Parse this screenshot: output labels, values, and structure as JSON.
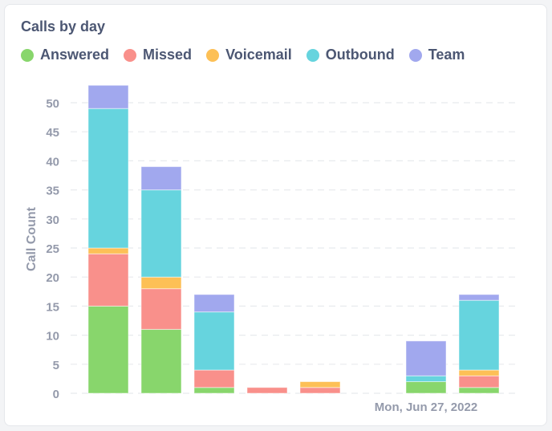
{
  "chart_data": {
    "type": "bar",
    "stacked": true,
    "title": "Calls by day",
    "ylabel": "Call Count",
    "xlabel": "",
    "ylim": [
      0,
      53
    ],
    "yticks": [
      0,
      5,
      10,
      15,
      20,
      25,
      30,
      35,
      40,
      45,
      50
    ],
    "grid": true,
    "legend_position": "top-left",
    "x_tick_labels": [
      {
        "index": 6,
        "label": "Mon, Jun 27, 2022"
      }
    ],
    "categories": [
      "1",
      "2",
      "3",
      "4",
      "5",
      "6",
      "7",
      "8"
    ],
    "series": [
      {
        "name": "Answered",
        "color": "#88d66c",
        "values": [
          15,
          11,
          1,
          0,
          0,
          0,
          2,
          1
        ]
      },
      {
        "name": "Missed",
        "color": "#f9908b",
        "values": [
          9,
          7,
          3,
          1,
          1,
          0,
          0,
          2
        ]
      },
      {
        "name": "Voicemail",
        "color": "#fdc056",
        "values": [
          1,
          2,
          0,
          0,
          1,
          0,
          0,
          1
        ]
      },
      {
        "name": "Outbound",
        "color": "#66d4de",
        "values": [
          24,
          15,
          10,
          0,
          0,
          0,
          1,
          12
        ]
      },
      {
        "name": "Team",
        "color": "#a1a8ee",
        "values": [
          4,
          4,
          3,
          0,
          0,
          0,
          6,
          1
        ]
      }
    ]
  }
}
